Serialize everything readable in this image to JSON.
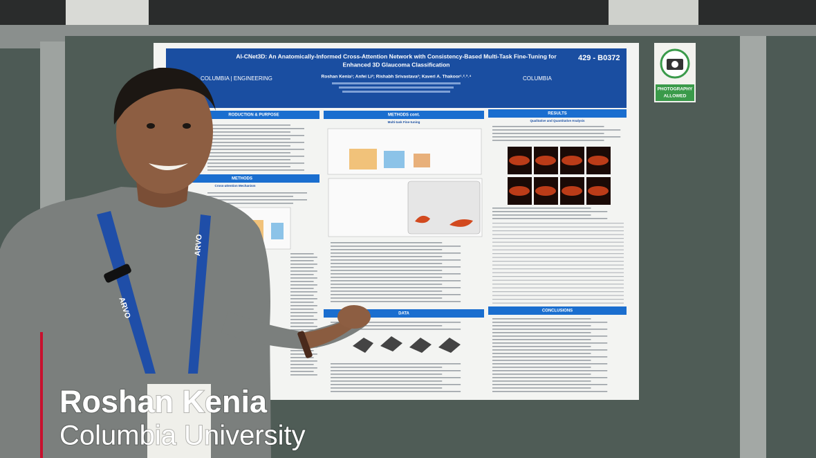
{
  "poster": {
    "title": [
      "AI-CNet3D: An Anatomically-Informed Cross-Attention Network with Consistency-Based Multi-Task Fine-Tuning for",
      "Enhanced 3D Glaucoma Classification"
    ],
    "poster_id": "429 - B0372",
    "authors": "Roshan Kenia¹; Anfei Li²; Rishabh Srivastava²; Kaveri A. Thakoor¹˒²˒³˒⁴",
    "logo_left": "COLUMBIA | ENGINEERING",
    "logo_right": "COLUMBIA",
    "sections": [
      "RODUCTION & PURPOSE",
      "METHODS",
      "METHODS cont.",
      "RESULTS",
      "DATA",
      "CONCLUSIONS"
    ],
    "subheadings": [
      "Cross-attention Mechanism",
      "Multi-task Fine-tuning",
      "Qualitative and Quantitative Analysis"
    ]
  },
  "sign": {
    "line_1": "PHOTOGRAPHY",
    "line_2": "ALLOWED"
  },
  "lanyard": "ARVO",
  "lower_third": {
    "name": "Roshan Kenia",
    "affiliation": "Columbia University"
  }
}
